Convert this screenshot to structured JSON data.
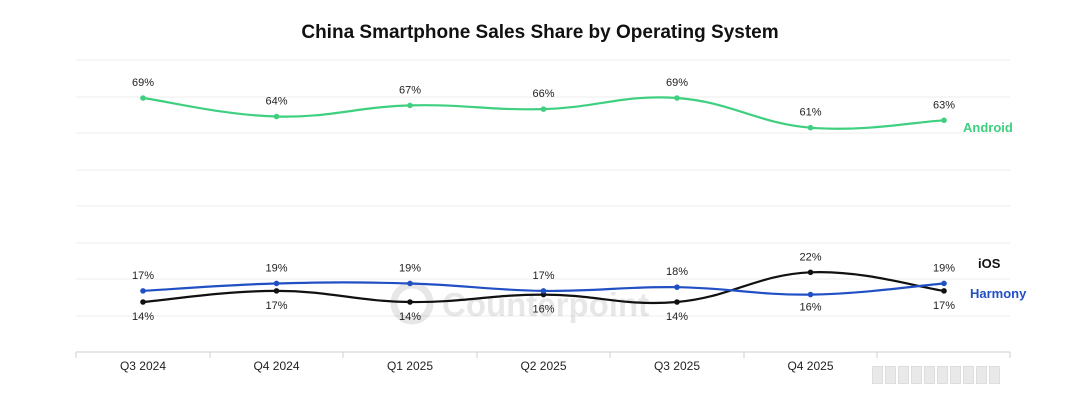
{
  "chart_data": {
    "type": "line",
    "title": "China Smartphone Sales Share by Operating System",
    "categories": [
      "Q3 2024",
      "Q4 2024",
      "Q1 2025",
      "Q2 2025",
      "Q3 2025",
      "Q4 2025",
      ""
    ],
    "series": [
      {
        "name": "Android",
        "values": [
          69,
          64,
          67,
          66,
          69,
          61,
          63
        ],
        "labels": [
          "69%",
          "64%",
          "67%",
          "66%",
          "69%",
          "61%",
          "63%"
        ],
        "color": "#3ecf7f"
      },
      {
        "name": "iOS",
        "values": [
          14,
          17,
          14,
          16,
          14,
          22,
          17
        ],
        "labels": [
          "14%",
          "17%",
          "14%",
          "16%",
          "14%",
          "22%",
          "17%"
        ],
        "color": "#111111"
      },
      {
        "name": "Harmony",
        "values": [
          17,
          19,
          19,
          17,
          18,
          16,
          19
        ],
        "labels": [
          "17%",
          "19%",
          "19%",
          "17%",
          "18%",
          "16%",
          "19%"
        ],
        "color": "#2150c4"
      }
    ],
    "ylim": [
      0,
      80
    ],
    "grid": true,
    "legend": "inline-right"
  },
  "watermark": {
    "text": "Counterpoint"
  }
}
